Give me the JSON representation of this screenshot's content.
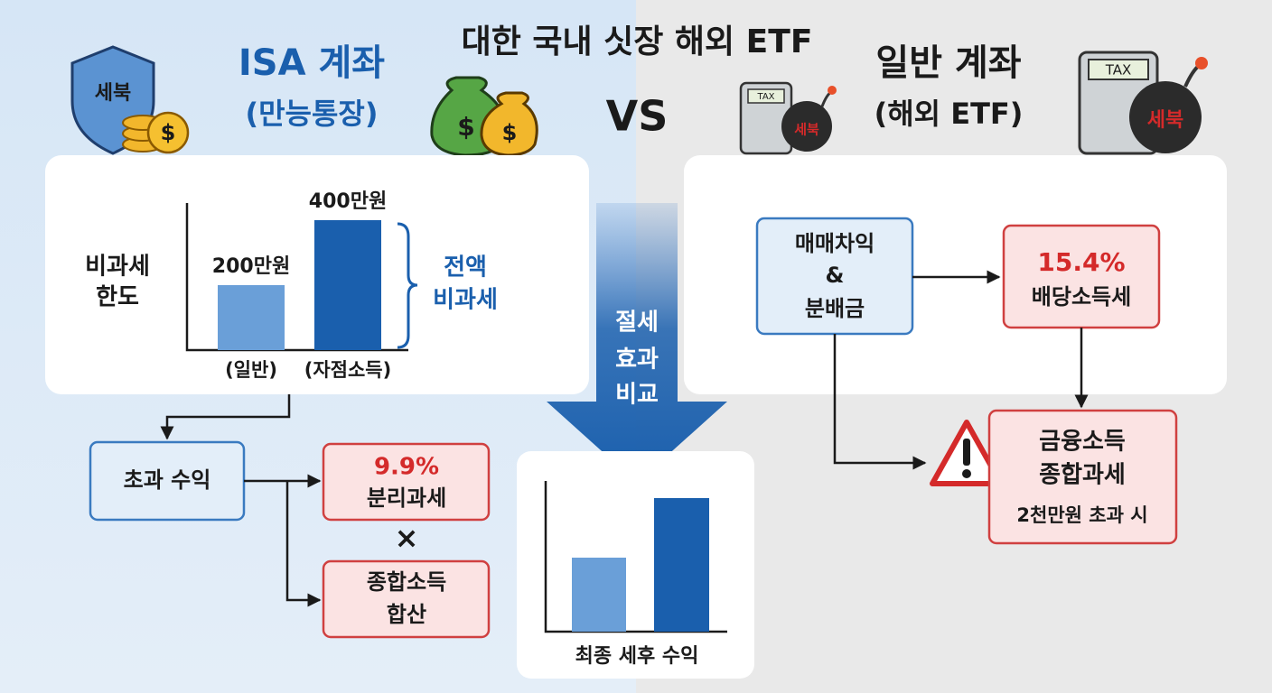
{
  "title": "대한 국내 싯장 해외 ETF",
  "vs": "VS",
  "isa": {
    "title": "ISA 계좌",
    "subtitle": "(만능통장)",
    "limit_label": [
      "비과세",
      "한도"
    ],
    "limit_chart": {
      "categories": [
        "(일반)",
        "(자점소득)"
      ],
      "values": [
        200,
        400
      ],
      "value_labels": [
        "200만원",
        "400만원"
      ]
    },
    "brace_label": [
      "전액",
      "비과세"
    ],
    "excess": "초과 수익",
    "separate": {
      "rate": "9.9%",
      "label": "분리과세"
    },
    "times": "×",
    "combined": [
      "종합소득",
      "합산"
    ]
  },
  "center": {
    "arrow_label": [
      "절세",
      "효과",
      "비교"
    ],
    "chart_label": "최종 세후 수익"
  },
  "general": {
    "title": "일반 계좌",
    "subtitle": "(해외 ETF)",
    "source": [
      "매매차익",
      "&",
      "분배금"
    ],
    "dividend": {
      "rate": "15.4%",
      "label": "배당소득세"
    },
    "financial": {
      "lines": [
        "금융소득",
        "종합과세"
      ],
      "condition": "2천만원 초과 시"
    }
  },
  "icons": {
    "shield": "세북",
    "bomb": "세북",
    "calculator": "TAX",
    "dollar": "$"
  }
}
